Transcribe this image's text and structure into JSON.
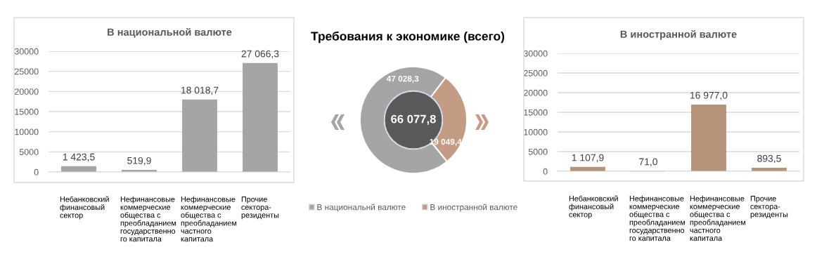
{
  "chart_data": [
    {
      "type": "bar",
      "title": "В национальной валюте",
      "categories": [
        "Небанковский\nфинансовый\nсектор",
        "Нефинансовые\nкоммерческие\nобщества с\nпреобладанием\nгосударственно\nго капитала",
        "Нефинансовые\nкоммерческие\nобщества с\nпреобладанием\nчастного\nкапитала",
        "Прочие\nсектора-\nрезиденты"
      ],
      "values": [
        1423.5,
        519.9,
        18018.7,
        27066.3
      ],
      "color": "#a5a5a5",
      "value_labels": [
        "1 423,5",
        "519,9",
        "18 018,7",
        "27 066,3"
      ],
      "ylim": [
        0,
        30000
      ],
      "yticks": [
        0,
        5000,
        10000,
        15000,
        20000,
        25000,
        30000
      ],
      "grid": "y"
    },
    {
      "type": "donut",
      "title": "Требования к экономике (всего)",
      "categories": [
        "В национальнй валюте",
        "В иностранной валюте"
      ],
      "values": [
        47028.3,
        19049.4
      ],
      "colors": [
        "#a5a5a5",
        "#c49c85"
      ],
      "value_labels": [
        "47 028,3",
        "19 049,4"
      ],
      "annotations": [
        "66 077,8"
      ],
      "legend": "bottom"
    },
    {
      "type": "bar",
      "title": "В иностранной валюте",
      "categories": [
        "Небанковский\nфинансовый\nсектор",
        "Нефинансовые\nкоммерческие\nобщества с\nпреобладанием\nгосударственно\nго капитала",
        "Нефинансовые\nкоммерческие\nобщества с\nпреобладанием\nчастного\nкапитала",
        "Прочие\nсектора-\nрезиденты"
      ],
      "values": [
        1107.9,
        71.0,
        16977.0,
        893.5
      ],
      "color": "#b5927a",
      "value_labels": [
        "1 107,9",
        "71,0",
        "16 977,0",
        "893,5"
      ],
      "ylim": [
        0,
        30000
      ],
      "yticks": [
        0,
        5000,
        10000,
        15000,
        20000,
        25000,
        30000
      ],
      "grid": "y"
    }
  ]
}
